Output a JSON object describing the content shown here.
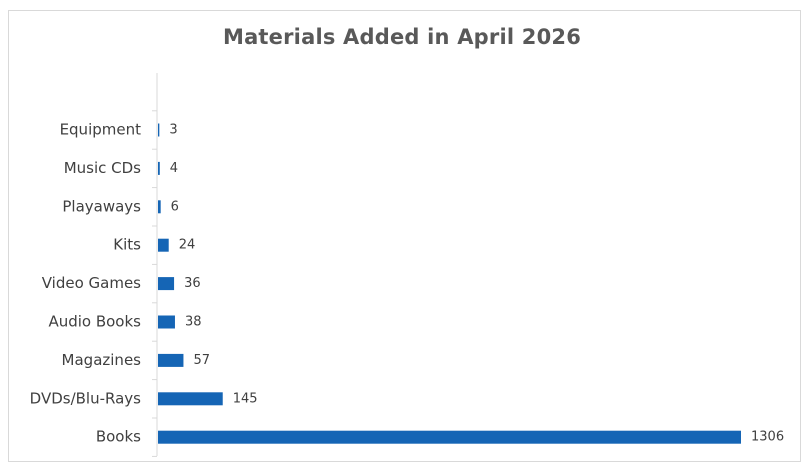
{
  "chart_data": {
    "type": "bar",
    "orientation": "horizontal",
    "title": "Materials Added in April 2026",
    "categories": [
      "Equipment",
      "Music CDs",
      "Playaways",
      "Kits",
      "Video Games",
      "Audio Books",
      "Magazines",
      "DVDs/Blu-Rays",
      "Books"
    ],
    "values": [
      3,
      4,
      6,
      24,
      36,
      38,
      57,
      145,
      1306
    ],
    "xlim": [
      0,
      1306
    ],
    "grid": false,
    "legend": "none",
    "bar_color": "#1565b5"
  }
}
